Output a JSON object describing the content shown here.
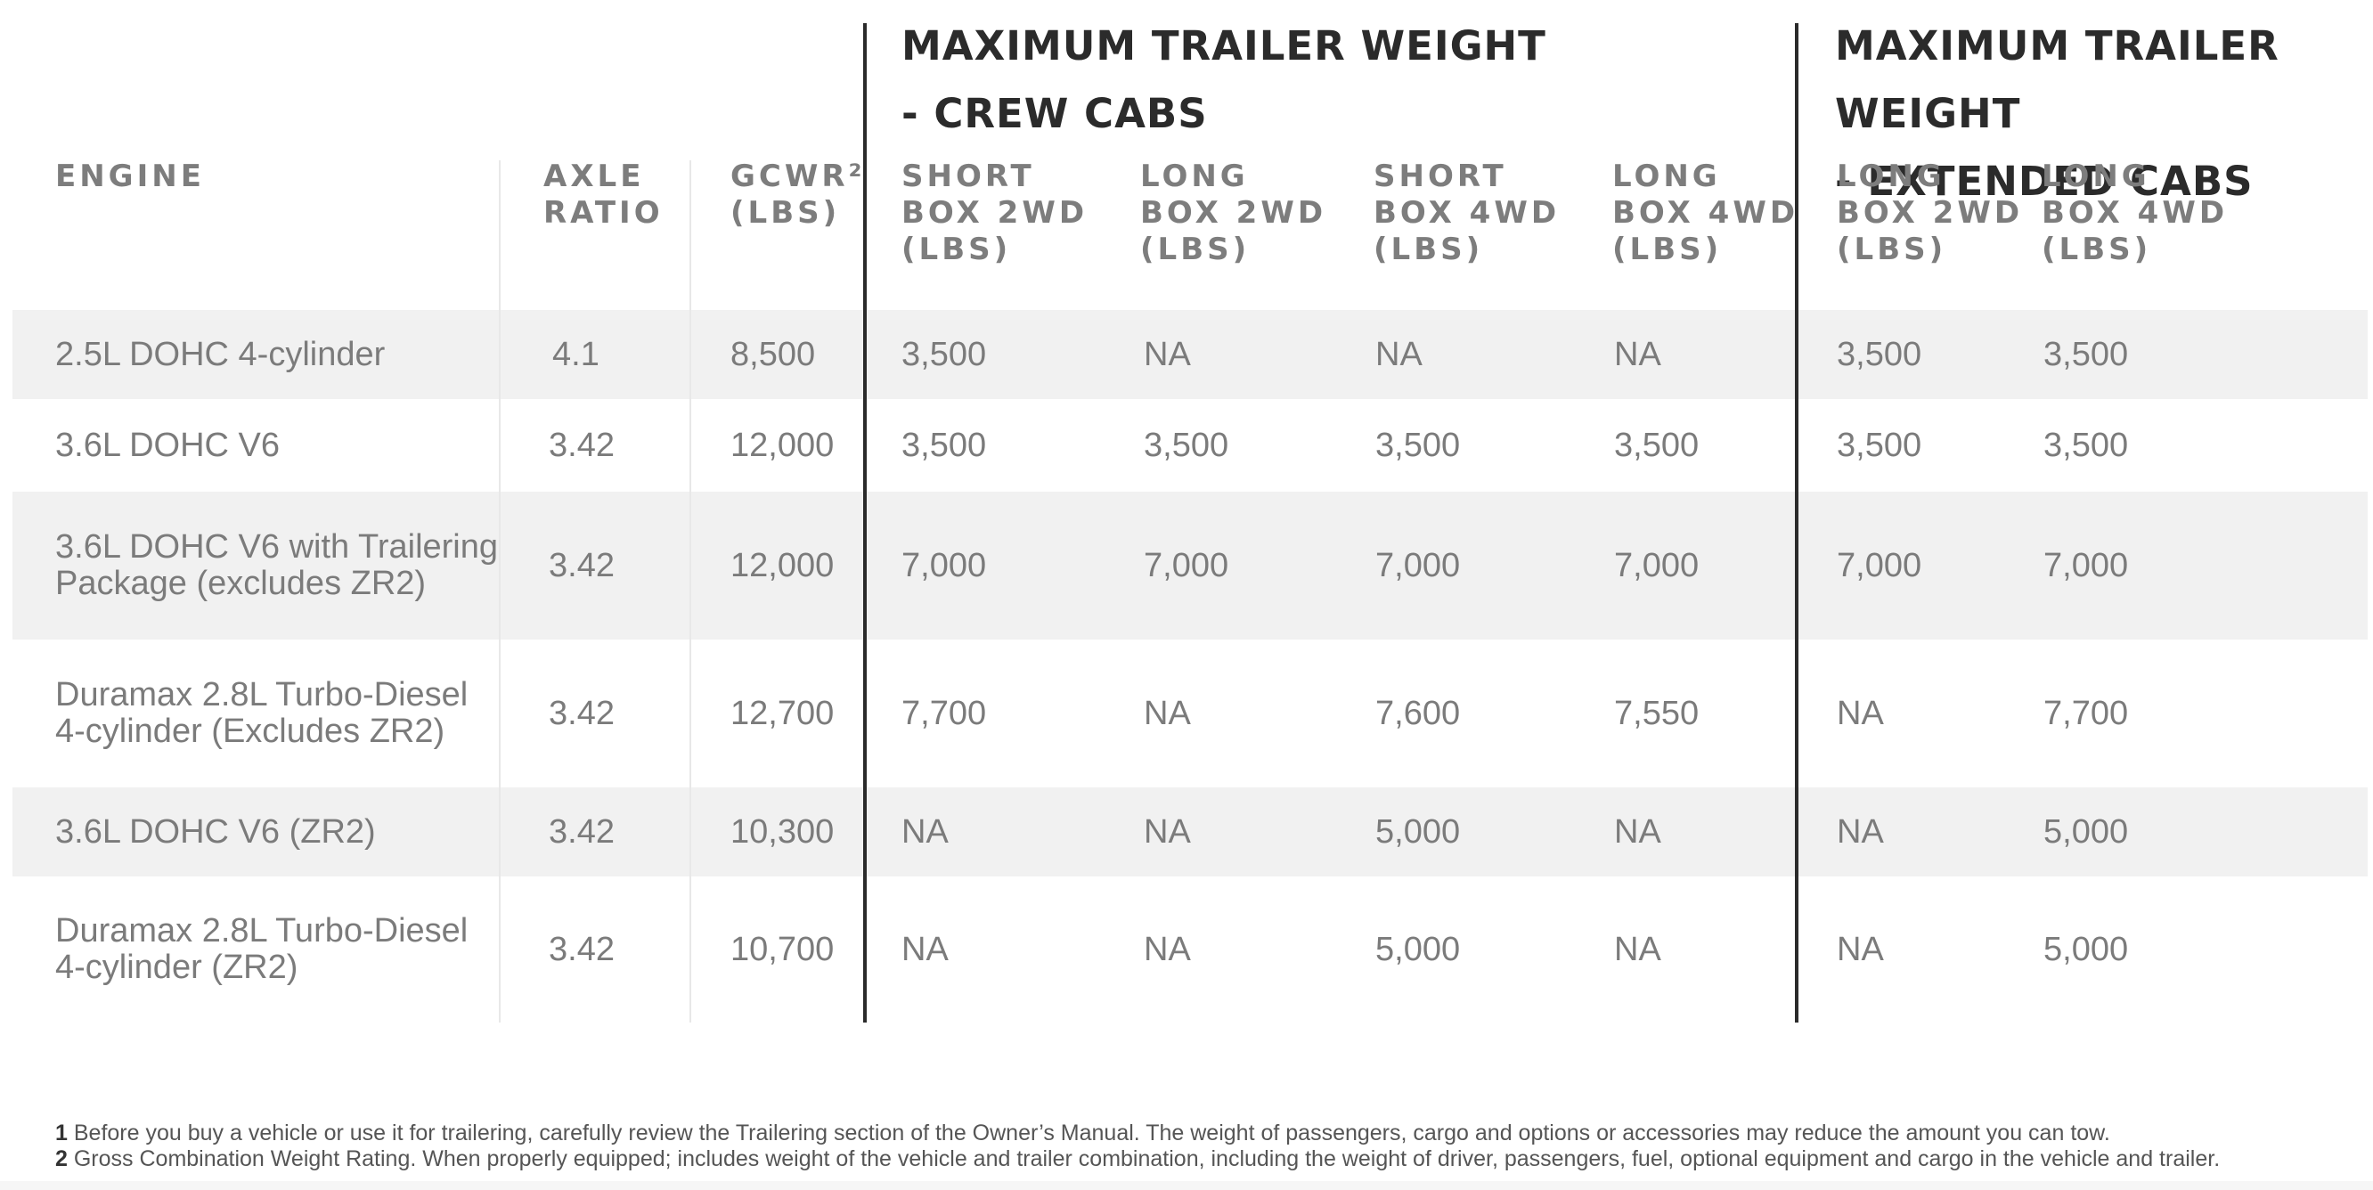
{
  "groups": [
    {
      "title": "MAXIMUM TRAILER WEIGHT\n- CREW CABS"
    },
    {
      "title": "MAXIMUM TRAILER WEIGHT\n- EXTENDED CABS"
    }
  ],
  "columns": [
    {
      "label": "ENGINE"
    },
    {
      "label": "AXLE\nRATIO"
    },
    {
      "label": "GCWR²\n(LBS)"
    },
    {
      "label": "SHORT\nBOX 2WD\n(LBS)"
    },
    {
      "label": "LONG\nBOX 2WD\n(LBS)"
    },
    {
      "label": "SHORT\nBOX 4WD\n(LBS)"
    },
    {
      "label": "LONG\nBOX 4WD\n(LBS)"
    },
    {
      "label": "LONG\nBOX 2WD\n(LBS)"
    },
    {
      "label": "LONG\nBOX 4WD\n(LBS)"
    }
  ],
  "rows": [
    {
      "cells": [
        "2.5L DOHC 4-cylinder",
        "4.1",
        "8,500",
        "3,500",
        "NA",
        "NA",
        "NA",
        "3,500",
        "3,500"
      ]
    },
    {
      "cells": [
        "3.6L DOHC V6",
        "3.42",
        "12,000",
        "3,500",
        "3,500",
        "3,500",
        "3,500",
        "3,500",
        "3,500"
      ]
    },
    {
      "cells": [
        "3.6L DOHC V6 with Trailering\nPackage (excludes ZR2)",
        "3.42",
        "12,000",
        "7,000",
        "7,000",
        "7,000",
        "7,000",
        "7,000",
        "7,000"
      ]
    },
    {
      "cells": [
        "Duramax 2.8L Turbo-Diesel\n4-cylinder (Excludes ZR2)",
        "3.42",
        "12,700",
        "7,700",
        "NA",
        "7,600",
        "7,550",
        "NA",
        "7,700"
      ]
    },
    {
      "cells": [
        "3.6L DOHC V6 (ZR2)",
        "3.42",
        "10,300",
        "NA",
        "NA",
        "5,000",
        "NA",
        "NA",
        "5,000"
      ]
    },
    {
      "cells": [
        "Duramax 2.8L Turbo-Diesel\n4-cylinder (ZR2)",
        "3.42",
        "10,700",
        "NA",
        "NA",
        "5,000",
        "NA",
        "NA",
        "5,000"
      ]
    }
  ],
  "footnotes": [
    {
      "num": "1",
      "text": "Before you buy a vehicle or use it for trailering, carefully review the Trailering section of the Owner’s Manual. The weight of passengers, cargo and options or accessories may reduce the amount you can tow."
    },
    {
      "num": "2",
      "text": "Gross Combination Weight Rating. When properly equipped; includes weight of the vehicle and trailer combination, including the weight of driver, passengers, fuel, optional equipment and cargo in the vehicle and trailer."
    }
  ]
}
